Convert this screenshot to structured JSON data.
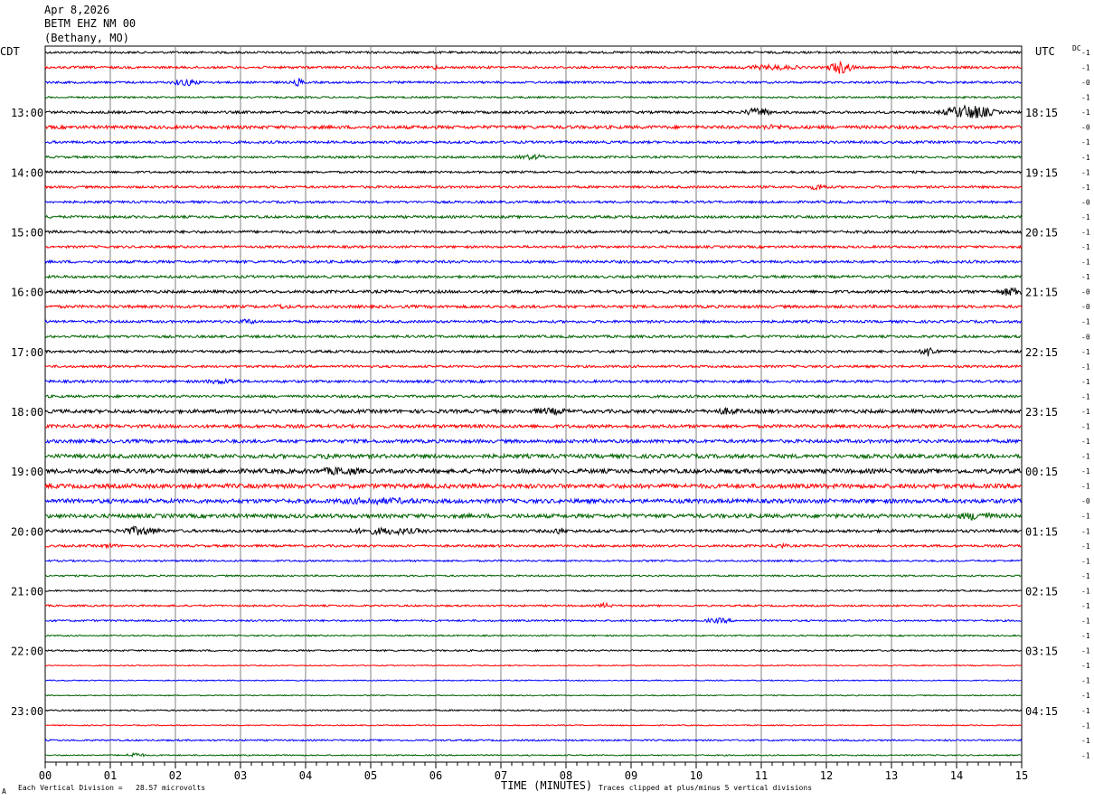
{
  "header": {
    "date": "Apr 8,2026",
    "station": "BETM EHZ NM 00",
    "location": "(Bethany, MO)"
  },
  "left_zone_label": "CDT",
  "right_zone_label": "UTC",
  "dc_label": "DC",
  "footer": {
    "vertical_division": "Each Vertical Division =   28.57 microvolts",
    "xlabel": "TIME (MINUTES)",
    "clip_note": "Traces clipped at plus/minus 5 vertical divisions",
    "corner_mark": "A"
  },
  "chart_data": {
    "type": "line",
    "title": "",
    "xlabel": "TIME (MINUTES)",
    "xlim": [
      0,
      15
    ],
    "x_ticks": [
      "00",
      "01",
      "02",
      "03",
      "04",
      "05",
      "06",
      "07",
      "08",
      "09",
      "10",
      "11",
      "12",
      "13",
      "14",
      "15"
    ],
    "grid": true,
    "trace_colors": [
      "#000000",
      "#ff0000",
      "#0000ff",
      "#006400"
    ],
    "traces_per_hour": 4,
    "trace_count": 48,
    "left_time_labels": [
      {
        "trace": 4,
        "text": "13:00"
      },
      {
        "trace": 8,
        "text": "14:00"
      },
      {
        "trace": 12,
        "text": "15:00"
      },
      {
        "trace": 16,
        "text": "16:00"
      },
      {
        "trace": 20,
        "text": "17:00"
      },
      {
        "trace": 24,
        "text": "18:00"
      },
      {
        "trace": 28,
        "text": "19:00"
      },
      {
        "trace": 32,
        "text": "20:00"
      },
      {
        "trace": 36,
        "text": "21:00"
      },
      {
        "trace": 40,
        "text": "22:00"
      },
      {
        "trace": 44,
        "text": "23:00"
      }
    ],
    "right_time_labels": [
      {
        "trace": 4,
        "text": "18:15"
      },
      {
        "trace": 8,
        "text": "19:15"
      },
      {
        "trace": 12,
        "text": "20:15"
      },
      {
        "trace": 16,
        "text": "21:15"
      },
      {
        "trace": 20,
        "text": "22:15"
      },
      {
        "trace": 24,
        "text": "23:15"
      },
      {
        "trace": 28,
        "text": "00:15"
      },
      {
        "trace": 32,
        "text": "01:15"
      },
      {
        "trace": 36,
        "text": "02:15"
      },
      {
        "trace": 40,
        "text": "03:15"
      },
      {
        "trace": 44,
        "text": "04:15"
      }
    ],
    "dc_offsets": [
      "-1",
      "-1",
      "-0",
      "-1",
      "-1",
      "-0",
      "-1",
      "-1",
      "-1",
      "-1",
      "-0",
      "-1",
      "-1",
      "-1",
      "-1",
      "-1",
      "-0",
      "-0",
      "-1",
      "-0",
      "-1",
      "-1",
      "-1",
      "-1",
      "-1",
      "-1",
      "-1",
      "-1",
      "-1",
      "-1",
      "-0",
      "-1",
      "-1",
      "-1",
      "-1",
      "-1",
      "-1",
      "-1",
      "-1",
      "-1",
      "-1",
      "-1",
      "-1",
      "-1",
      "-1",
      "-1",
      "-1",
      "-1"
    ],
    "noise_levels": [
      1.2,
      1.3,
      1.2,
      1.0,
      1.4,
      1.8,
      1.4,
      1.2,
      1.2,
      1.3,
      1.3,
      1.4,
      1.5,
      1.3,
      1.5,
      1.4,
      1.6,
      1.6,
      1.4,
      1.4,
      1.4,
      1.3,
      1.4,
      1.4,
      2.0,
      1.8,
      1.9,
      2.2,
      2.4,
      2.4,
      2.3,
      2.2,
      1.6,
      1.3,
      1.0,
      0.9,
      0.9,
      1.0,
      1.0,
      0.8,
      0.9,
      0.6,
      0.6,
      0.6,
      0.8,
      0.6,
      0.9,
      0.7
    ],
    "events": [
      {
        "trace": 1,
        "minute": 5.95,
        "amplitude": 3,
        "duration": 0.15
      },
      {
        "trace": 1,
        "minute": 10.8,
        "amplitude": 3,
        "duration": 1.2
      },
      {
        "trace": 1,
        "minute": 12.1,
        "amplitude": 7,
        "duration": 0.4
      },
      {
        "trace": 2,
        "minute": 2.0,
        "amplitude": 4,
        "duration": 0.5
      },
      {
        "trace": 2,
        "minute": 3.85,
        "amplitude": 5,
        "duration": 0.15
      },
      {
        "trace": 4,
        "minute": 10.8,
        "amplitude": 5,
        "duration": 0.5
      },
      {
        "trace": 4,
        "minute": 13.95,
        "amplitude": 8,
        "duration": 0.8
      },
      {
        "trace": 5,
        "minute": 10.9,
        "amplitude": 3,
        "duration": 1.0
      },
      {
        "trace": 7,
        "minute": 7.3,
        "amplitude": 3,
        "duration": 0.6
      },
      {
        "trace": 9,
        "minute": 11.8,
        "amplitude": 4,
        "duration": 0.3
      },
      {
        "trace": 16,
        "minute": 14.7,
        "amplitude": 5,
        "duration": 0.5
      },
      {
        "trace": 17,
        "minute": 3.5,
        "amplitude": 3,
        "duration": 0.4
      },
      {
        "trace": 18,
        "minute": 3.0,
        "amplitude": 3,
        "duration": 0.4
      },
      {
        "trace": 20,
        "minute": 13.5,
        "amplitude": 6,
        "duration": 0.3
      },
      {
        "trace": 22,
        "minute": 2.5,
        "amplitude": 3,
        "duration": 0.8
      },
      {
        "trace": 24,
        "minute": 7.5,
        "amplitude": 4,
        "duration": 0.8
      },
      {
        "trace": 24,
        "minute": 10.3,
        "amplitude": 4,
        "duration": 0.6
      },
      {
        "trace": 27,
        "minute": 4.3,
        "amplitude": 5,
        "duration": 0.2
      },
      {
        "trace": 28,
        "minute": 4.3,
        "amplitude": 5,
        "duration": 0.8
      },
      {
        "trace": 30,
        "minute": 4.5,
        "amplitude": 4,
        "duration": 2.0
      },
      {
        "trace": 31,
        "minute": 14.1,
        "amplitude": 5,
        "duration": 0.7
      },
      {
        "trace": 32,
        "minute": 1.2,
        "amplitude": 5,
        "duration": 0.8
      },
      {
        "trace": 32,
        "minute": 4.8,
        "amplitude": 4,
        "duration": 1.5
      },
      {
        "trace": 32,
        "minute": 7.8,
        "amplitude": 4,
        "duration": 0.3
      },
      {
        "trace": 33,
        "minute": 0.9,
        "amplitude": 3,
        "duration": 0.3
      },
      {
        "trace": 33,
        "minute": 11.2,
        "amplitude": 3,
        "duration": 0.3
      },
      {
        "trace": 37,
        "minute": 8.5,
        "amplitude": 3,
        "duration": 0.3
      },
      {
        "trace": 38,
        "minute": 10.2,
        "amplitude": 3,
        "duration": 0.5
      },
      {
        "trace": 47,
        "minute": 1.3,
        "amplitude": 3,
        "duration": 0.3
      }
    ]
  }
}
